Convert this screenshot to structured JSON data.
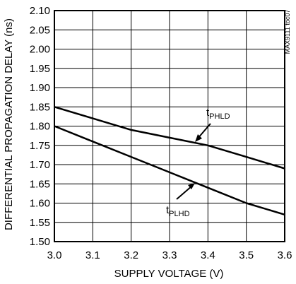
{
  "chart_data": {
    "type": "line",
    "xlabel": "SUPPLY VOLTAGE (V)",
    "ylabel": "DIFFERENTIAL PROPAGATION DELAY (ns)",
    "xlim": [
      3.0,
      3.6
    ],
    "ylim": [
      1.5,
      2.1
    ],
    "x_ticks": [
      "3.0",
      "3.1",
      "3.2",
      "3.3",
      "3.4",
      "3.5",
      "3.6"
    ],
    "y_ticks": [
      "1.50",
      "1.55",
      "1.60",
      "1.65",
      "1.70",
      "1.75",
      "1.80",
      "1.85",
      "1.90",
      "1.95",
      "2.00",
      "2.05",
      "2.10"
    ],
    "grid": true,
    "series": [
      {
        "name_main": "t",
        "name_sub": "PHLD",
        "x": [
          3.0,
          3.1,
          3.2,
          3.3,
          3.4,
          3.5,
          3.6
        ],
        "y": [
          1.85,
          1.82,
          1.79,
          1.77,
          1.75,
          1.72,
          1.69
        ]
      },
      {
        "name_main": "t",
        "name_sub": "PLHD",
        "x": [
          3.0,
          3.1,
          3.2,
          3.3,
          3.4,
          3.5,
          3.6
        ],
        "y": [
          1.8,
          1.76,
          1.72,
          1.68,
          1.64,
          1.6,
          1.57
        ]
      }
    ],
    "figure_code": "MAX9111 toc07"
  }
}
